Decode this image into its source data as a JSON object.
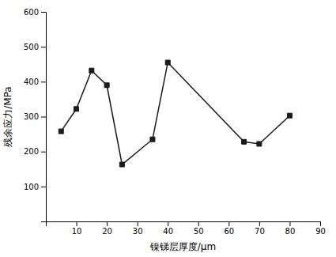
{
  "chart_data": {
    "type": "line",
    "x": [
      5,
      10,
      15,
      20,
      25,
      35,
      40,
      65,
      70,
      80
    ],
    "values": [
      258,
      322,
      432,
      390,
      163,
      235,
      455,
      228,
      222,
      303
    ],
    "xlabel": "镍锑层厚度/μm",
    "ylabel": "残余应力/MPa",
    "xlim": [
      0,
      90
    ],
    "ylim": [
      0,
      600
    ],
    "xticks": [
      {
        "value": 0,
        "label": null
      },
      10,
      20,
      30,
      40,
      50,
      60,
      70,
      80,
      90
    ],
    "yticks": [
      {
        "value": 0,
        "label": null
      },
      100,
      200,
      300,
      400,
      500,
      600
    ],
    "color": "#1a1a1a",
    "marker": "square",
    "grid": false
  }
}
